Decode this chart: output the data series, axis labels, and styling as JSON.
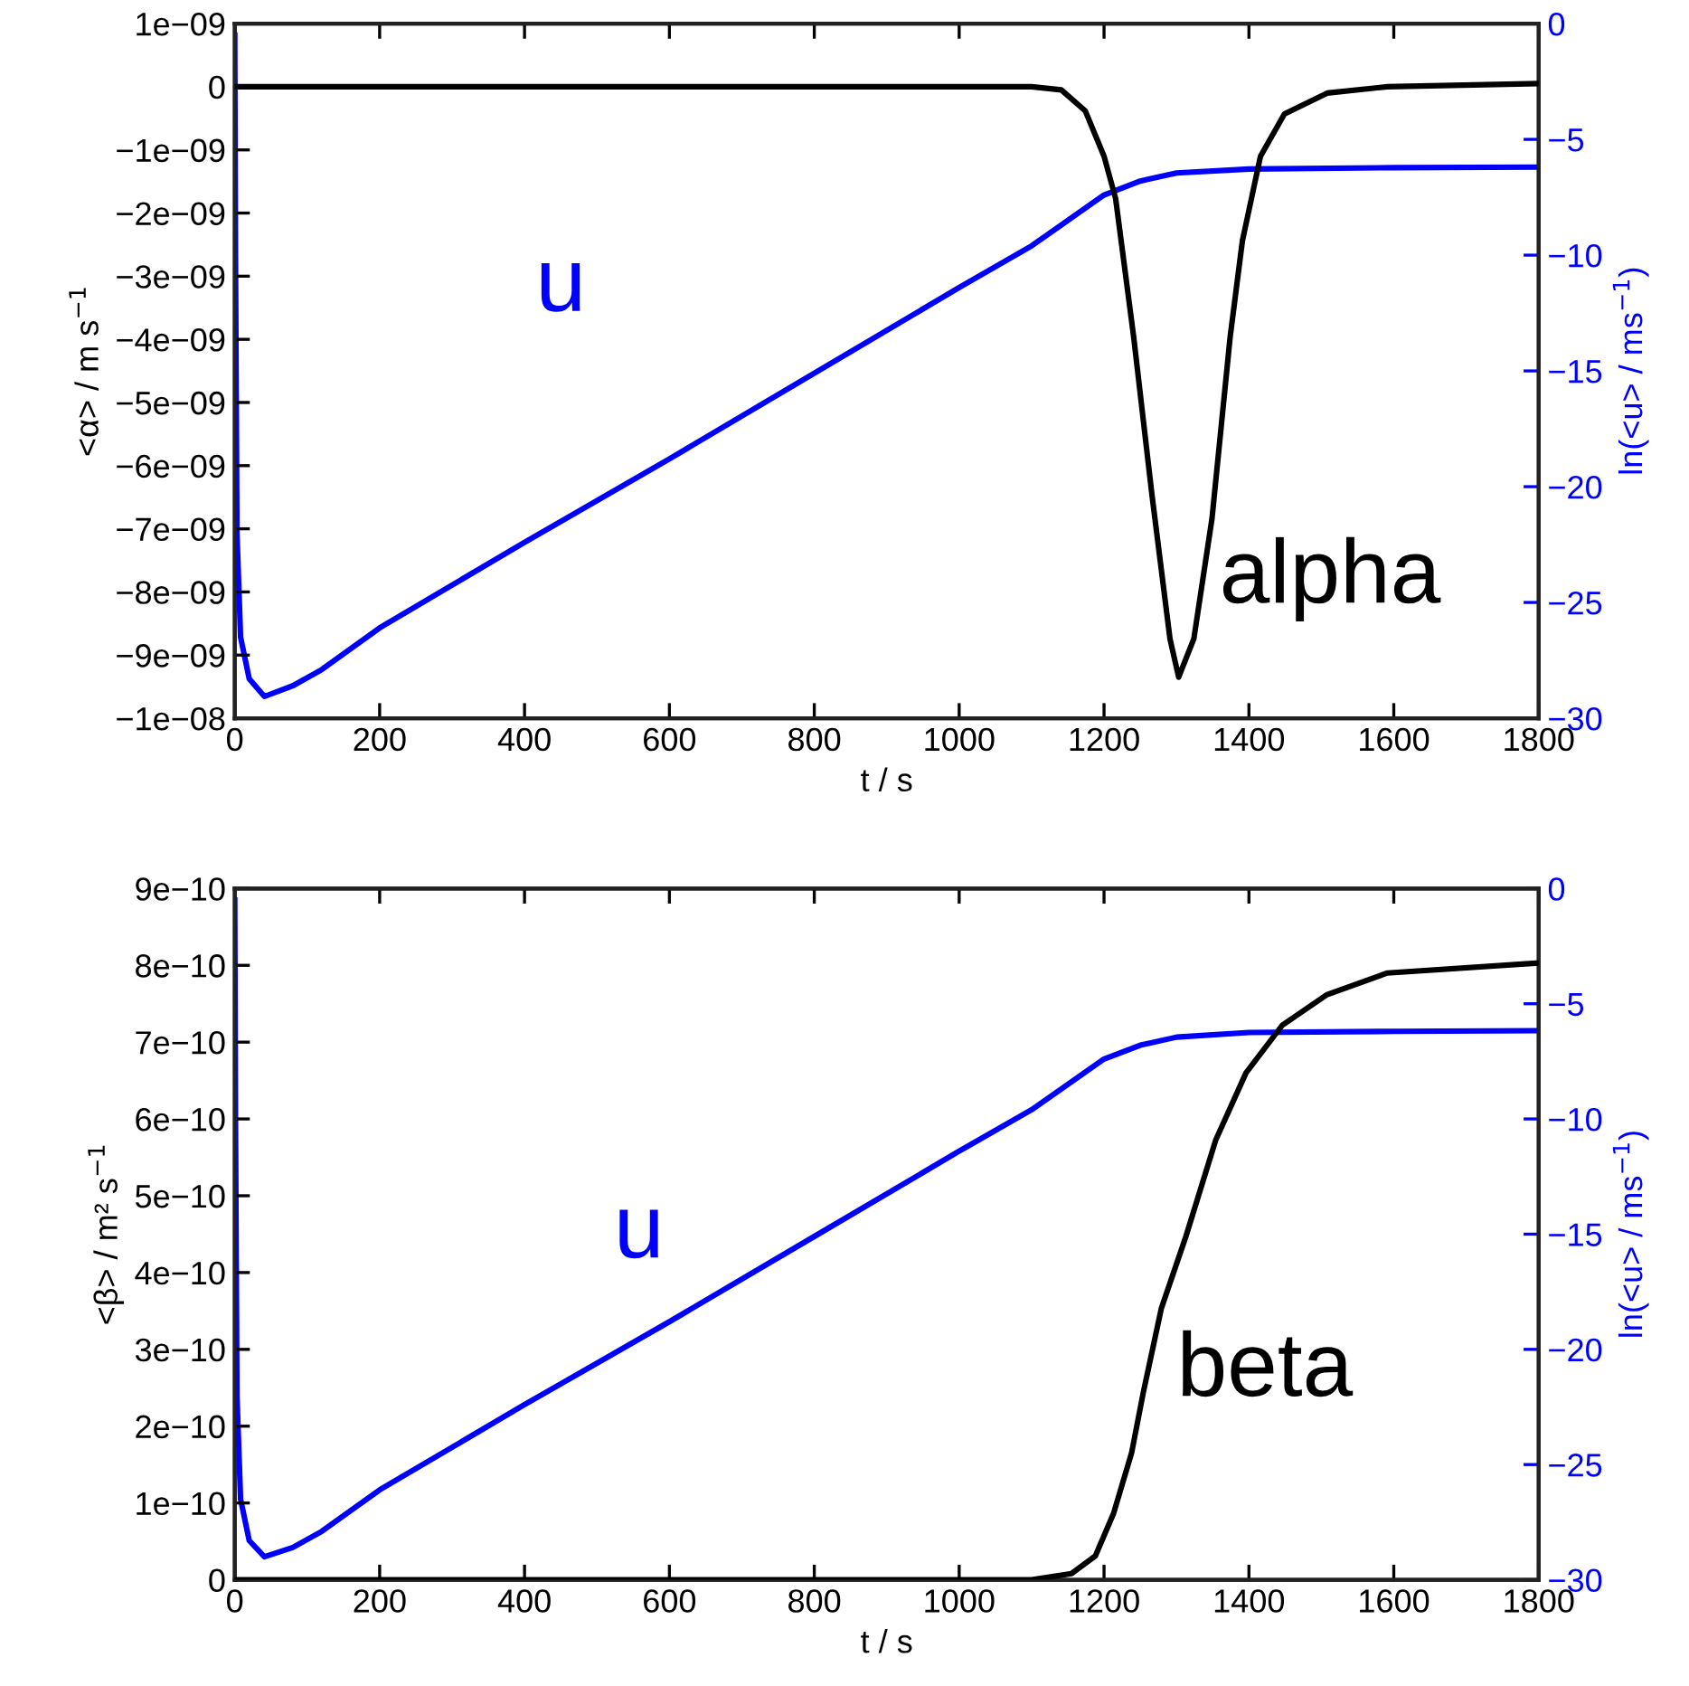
{
  "chart_data": [
    {
      "type": "line",
      "xlabel": "t / s",
      "ylabel": "<α> / m s$^{−1}$",
      "y2label": "ln(<u> / ms$^{−1}$)",
      "xlim": [
        0,
        1800
      ],
      "xticks": [
        0,
        200,
        400,
        600,
        800,
        1000,
        1200,
        1400,
        1600,
        1800
      ],
      "ylim": [
        -1e-08,
        1e-09
      ],
      "yticks": [
        {
          "value": 1e-09,
          "label": "1e−09"
        },
        {
          "value": 0,
          "label": "0"
        },
        {
          "value": -1e-09,
          "label": "−1e−09"
        },
        {
          "value": -2e-09,
          "label": "−2e−09"
        },
        {
          "value": -3e-09,
          "label": "−3e−09"
        },
        {
          "value": -4e-09,
          "label": "−4e−09"
        },
        {
          "value": -5e-09,
          "label": "−5e−09"
        },
        {
          "value": -6e-09,
          "label": "−6e−09"
        },
        {
          "value": -7e-09,
          "label": "−7e−09"
        },
        {
          "value": -8e-09,
          "label": "−8e−09"
        },
        {
          "value": -9e-09,
          "label": "−9e−09"
        },
        {
          "value": -1e-08,
          "label": "−1e−08"
        }
      ],
      "y2lim": [
        -30,
        0
      ],
      "y2ticks": [
        0,
        -5,
        -10,
        -15,
        -20,
        -25,
        -30
      ],
      "series": [
        {
          "name": "alpha",
          "color": "#000000",
          "x": [
            0,
            1100,
            1141,
            1174,
            1200,
            1216,
            1241,
            1266,
            1291,
            1303,
            1324,
            1349,
            1374,
            1391,
            1416,
            1449,
            1508,
            1591,
            1800
          ],
          "values": [
            0,
            0,
            -5e-11,
            -3.8e-10,
            -1.1e-09,
            -1.77e-09,
            -3.97e-09,
            -6.45e-09,
            -8.74e-09,
            -9.35e-09,
            -8.74e-09,
            -6.84e-09,
            -3.97e-09,
            -2.44e-09,
            -1.1e-09,
            -4.3e-10,
            -1e-10,
            0,
            5e-11
          ]
        },
        {
          "name": "u",
          "color": "#0000ff",
          "axis": "y2",
          "x": [
            0,
            1,
            3,
            8,
            20,
            41,
            80,
            120,
            200,
            400,
            600,
            800,
            1000,
            1100,
            1200,
            1250,
            1300,
            1400,
            1600,
            1800
          ],
          "values": [
            -0.5,
            -10,
            -22,
            -26.5,
            -28.3,
            -29.06,
            -28.6,
            -27.9,
            -26.1,
            -22.4,
            -18.8,
            -15.1,
            -11.4,
            -9.6,
            -7.4,
            -6.8,
            -6.45,
            -6.28,
            -6.22,
            -6.2
          ]
        }
      ]
    },
    {
      "type": "line",
      "xlabel": "t / s",
      "ylabel": "<β> / m² s$^{−1}$",
      "y2label": "ln(<u> / ms$^{−1}$)",
      "xlim": [
        0,
        1800
      ],
      "xticks": [
        0,
        200,
        400,
        600,
        800,
        1000,
        1200,
        1400,
        1600,
        1800
      ],
      "ylim": [
        0,
        9e-10
      ],
      "yticks": [
        {
          "value": 0,
          "label": "0"
        },
        {
          "value": 1e-10,
          "label": "1e−10"
        },
        {
          "value": 2e-10,
          "label": "2e−10"
        },
        {
          "value": 3e-10,
          "label": "3e−10"
        },
        {
          "value": 4e-10,
          "label": "4e−10"
        },
        {
          "value": 5e-10,
          "label": "5e−10"
        },
        {
          "value": 6e-10,
          "label": "6e−10"
        },
        {
          "value": 7e-10,
          "label": "7e−10"
        },
        {
          "value": 8e-10,
          "label": "8e−10"
        },
        {
          "value": 9e-10,
          "label": "9e−10"
        }
      ],
      "y2lim": [
        -30,
        0
      ],
      "y2ticks": [
        0,
        -5,
        -10,
        -15,
        -20,
        -25,
        -30
      ],
      "series": [
        {
          "name": "beta",
          "color": "#000000",
          "x": [
            0,
            1100,
            1155,
            1188,
            1213,
            1238,
            1254,
            1279,
            1313,
            1354,
            1396,
            1446,
            1508,
            1591,
            1800
          ],
          "values": [
            0,
            0,
            8e-12,
            3.1e-11,
            8.6e-11,
            1.65e-10,
            2.43e-10,
            3.53e-10,
            4.47e-10,
            5.72e-10,
            6.6e-10,
            7.22e-10,
            7.62e-10,
            7.9e-10,
            8.03e-10
          ]
        },
        {
          "name": "u",
          "color": "#0000ff",
          "axis": "y2",
          "x": [
            0,
            1,
            3,
            8,
            20,
            41,
            80,
            120,
            200,
            400,
            600,
            800,
            1000,
            1100,
            1200,
            1250,
            1300,
            1400,
            1600,
            1800
          ],
          "values": [
            -0.5,
            -10,
            -22,
            -26.5,
            -28.3,
            -29.0,
            -28.6,
            -27.9,
            -26.1,
            -22.4,
            -18.8,
            -15.1,
            -11.4,
            -9.6,
            -7.4,
            -6.8,
            -6.45,
            -6.25,
            -6.2,
            -6.17
          ]
        }
      ]
    }
  ]
}
